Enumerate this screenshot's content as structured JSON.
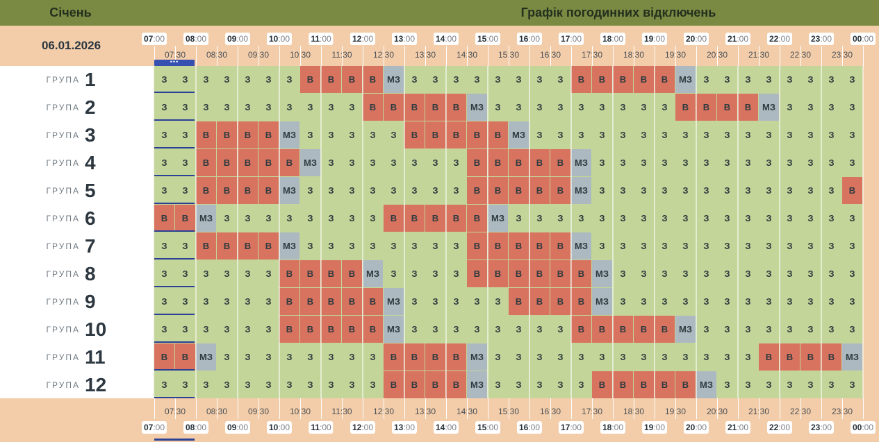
{
  "header": {
    "month": "Січень",
    "title": "Графік погодинних відключень",
    "date": "06.01.2026"
  },
  "timeline": {
    "hours": [
      "07",
      "08",
      "09",
      "10",
      "11",
      "12",
      "13",
      "14",
      "15",
      "16",
      "17",
      "18",
      "19",
      "20",
      "21",
      "22",
      "23",
      "00"
    ],
    "minutes_suffix": ":00",
    "half_hours": [
      "07:30",
      "08:30",
      "09:30",
      "10:30",
      "11:30",
      "12:30",
      "13:30",
      "14:30",
      "15:30",
      "16:30",
      "17:30",
      "18:30",
      "19:30",
      "20:30",
      "21:30",
      "22:30",
      "23:30"
    ],
    "current_marker": "•••"
  },
  "legend_codes": {
    "on": "З",
    "off": "В",
    "maybe": "МЗ"
  },
  "colors": {
    "on": "#c4d599",
    "off": "#d87360",
    "maybe": "#adb9c1",
    "header": "#7a8a42",
    "band": "#f3cda9",
    "now": "#3550b0"
  },
  "group_word": "ГРУПА",
  "groups": [
    {
      "number": "1",
      "slots": [
        "З",
        "З",
        "З",
        "З",
        "З",
        "З",
        "З",
        "В",
        "В",
        "В",
        "В",
        "МЗ",
        "З",
        "З",
        "З",
        "З",
        "З",
        "З",
        "З",
        "З",
        "В",
        "В",
        "В",
        "В",
        "В",
        "МЗ",
        "З",
        "З",
        "З",
        "З",
        "З",
        "З",
        "З",
        "З"
      ]
    },
    {
      "number": "2",
      "slots": [
        "З",
        "З",
        "З",
        "З",
        "З",
        "З",
        "З",
        "З",
        "З",
        "З",
        "В",
        "В",
        "В",
        "В",
        "В",
        "МЗ",
        "З",
        "З",
        "З",
        "З",
        "З",
        "З",
        "З",
        "З",
        "З",
        "В",
        "В",
        "В",
        "В",
        "МЗ",
        "З",
        "З",
        "З",
        "З"
      ]
    },
    {
      "number": "3",
      "slots": [
        "З",
        "З",
        "В",
        "В",
        "В",
        "В",
        "МЗ",
        "З",
        "З",
        "З",
        "З",
        "З",
        "В",
        "В",
        "В",
        "В",
        "В",
        "МЗ",
        "З",
        "З",
        "З",
        "З",
        "З",
        "З",
        "З",
        "З",
        "З",
        "З",
        "З",
        "З",
        "З",
        "З",
        "З",
        "З"
      ]
    },
    {
      "number": "4",
      "slots": [
        "З",
        "З",
        "В",
        "В",
        "В",
        "В",
        "В",
        "МЗ",
        "З",
        "З",
        "З",
        "З",
        "З",
        "З",
        "З",
        "В",
        "В",
        "В",
        "В",
        "В",
        "МЗ",
        "З",
        "З",
        "З",
        "З",
        "З",
        "З",
        "З",
        "З",
        "З",
        "З",
        "З",
        "З",
        "З"
      ]
    },
    {
      "number": "5",
      "slots": [
        "З",
        "З",
        "В",
        "В",
        "В",
        "В",
        "МЗ",
        "З",
        "З",
        "З",
        "З",
        "З",
        "З",
        "З",
        "З",
        "В",
        "В",
        "В",
        "В",
        "В",
        "МЗ",
        "З",
        "З",
        "З",
        "З",
        "З",
        "З",
        "З",
        "З",
        "З",
        "З",
        "З",
        "З",
        "В"
      ]
    },
    {
      "number": "6",
      "slots": [
        "В",
        "В",
        "МЗ",
        "З",
        "З",
        "З",
        "З",
        "З",
        "З",
        "З",
        "З",
        "В",
        "В",
        "В",
        "В",
        "В",
        "МЗ",
        "З",
        "З",
        "З",
        "З",
        "З",
        "З",
        "З",
        "З",
        "З",
        "З",
        "З",
        "З",
        "З",
        "З",
        "З",
        "З",
        "З"
      ]
    },
    {
      "number": "7",
      "slots": [
        "З",
        "З",
        "В",
        "В",
        "В",
        "В",
        "МЗ",
        "З",
        "З",
        "З",
        "З",
        "З",
        "З",
        "З",
        "З",
        "В",
        "В",
        "В",
        "В",
        "В",
        "МЗ",
        "З",
        "З",
        "З",
        "З",
        "З",
        "З",
        "З",
        "З",
        "З",
        "З",
        "З",
        "З",
        "З"
      ]
    },
    {
      "number": "8",
      "slots": [
        "З",
        "З",
        "З",
        "З",
        "З",
        "З",
        "В",
        "В",
        "В",
        "В",
        "МЗ",
        "З",
        "З",
        "З",
        "З",
        "В",
        "В",
        "В",
        "В",
        "В",
        "В",
        "МЗ",
        "З",
        "З",
        "З",
        "З",
        "З",
        "З",
        "З",
        "З",
        "З",
        "З",
        "З",
        "З"
      ]
    },
    {
      "number": "9",
      "slots": [
        "З",
        "З",
        "З",
        "З",
        "З",
        "З",
        "В",
        "В",
        "В",
        "В",
        "В",
        "МЗ",
        "З",
        "З",
        "З",
        "З",
        "З",
        "В",
        "В",
        "В",
        "В",
        "МЗ",
        "З",
        "З",
        "З",
        "З",
        "З",
        "З",
        "З",
        "З",
        "З",
        "З",
        "З",
        "З"
      ]
    },
    {
      "number": "10",
      "slots": [
        "З",
        "З",
        "З",
        "З",
        "З",
        "З",
        "В",
        "В",
        "В",
        "В",
        "В",
        "МЗ",
        "З",
        "З",
        "З",
        "З",
        "З",
        "З",
        "З",
        "З",
        "В",
        "В",
        "В",
        "В",
        "В",
        "МЗ",
        "З",
        "З",
        "З",
        "З",
        "З",
        "З",
        "З",
        "З"
      ]
    },
    {
      "number": "11",
      "slots": [
        "В",
        "В",
        "МЗ",
        "З",
        "З",
        "З",
        "З",
        "З",
        "З",
        "З",
        "З",
        "В",
        "В",
        "В",
        "В",
        "МЗ",
        "З",
        "З",
        "З",
        "З",
        "З",
        "З",
        "З",
        "З",
        "З",
        "З",
        "З",
        "З",
        "З",
        "В",
        "В",
        "В",
        "В",
        "МЗ"
      ]
    },
    {
      "number": "12",
      "slots": [
        "З",
        "З",
        "З",
        "З",
        "З",
        "З",
        "З",
        "З",
        "З",
        "З",
        "З",
        "В",
        "В",
        "В",
        "В",
        "МЗ",
        "З",
        "З",
        "З",
        "З",
        "З",
        "В",
        "В",
        "В",
        "В",
        "В",
        "МЗ",
        "З",
        "З",
        "З",
        "З",
        "З",
        "З",
        "З"
      ]
    }
  ]
}
